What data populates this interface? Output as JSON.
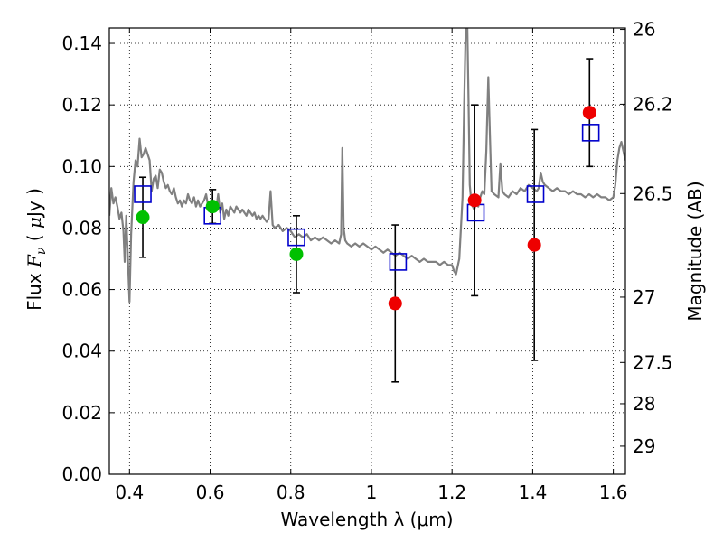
{
  "chart_data": {
    "type": "scatter",
    "xlabel": "Wavelength  λ (μm)",
    "ylabel": "Flux  F_ν  ( μJy )",
    "ylabel_parts": {
      "prefix": "Flux  ",
      "symbol": "F",
      "subscript": "ν",
      "suffix": "  ( ",
      "unit_mu": "μ",
      "unit": "Jy )"
    },
    "y2label": "Magnitude (AB)",
    "xlim": [
      0.35,
      1.63
    ],
    "ylim": [
      0.0,
      0.145
    ],
    "grid": true,
    "grid_style": "dotted",
    "x_ticks": [
      {
        "value": 0.4,
        "label": "0.4"
      },
      {
        "value": 0.6,
        "label": "0.6"
      },
      {
        "value": 0.8,
        "label": "0.8"
      },
      {
        "value": 1.0,
        "label": "1"
      },
      {
        "value": 1.2,
        "label": "1.2"
      },
      {
        "value": 1.4,
        "label": "1.4"
      },
      {
        "value": 1.6,
        "label": "1.6"
      }
    ],
    "y_ticks": [
      {
        "value": 0.0,
        "label": "0.00"
      },
      {
        "value": 0.02,
        "label": "0.02"
      },
      {
        "value": 0.04,
        "label": "0.04"
      },
      {
        "value": 0.06,
        "label": "0.06"
      },
      {
        "value": 0.08,
        "label": "0.08"
      },
      {
        "value": 0.1,
        "label": "0.10"
      },
      {
        "value": 0.12,
        "label": "0.12"
      },
      {
        "value": 0.14,
        "label": "0.14"
      }
    ],
    "y2_ticks": [
      {
        "mag": 26.0,
        "label": "26"
      },
      {
        "mag": 26.2,
        "label": "26.2"
      },
      {
        "mag": 26.5,
        "label": "26.5"
      },
      {
        "mag": 27.0,
        "label": "27"
      },
      {
        "mag": 27.5,
        "label": "27.5"
      },
      {
        "mag": 28.0,
        "label": "28"
      },
      {
        "mag": 29.0,
        "label": "29"
      }
    ],
    "colors": {
      "template": "#808080",
      "model_box": "#0000cc",
      "observed_optical": "#00c000",
      "observed_nir": "#ee0000",
      "errorbar": "#000000"
    },
    "series": [
      {
        "kind": "template-spectrum",
        "points": [
          [
            0.35,
            0.084
          ],
          [
            0.355,
            0.093
          ],
          [
            0.36,
            0.088
          ],
          [
            0.365,
            0.09
          ],
          [
            0.37,
            0.087
          ],
          [
            0.375,
            0.083
          ],
          [
            0.38,
            0.085
          ],
          [
            0.385,
            0.079
          ],
          [
            0.388,
            0.069
          ],
          [
            0.392,
            0.084
          ],
          [
            0.396,
            0.07
          ],
          [
            0.4,
            0.056
          ],
          [
            0.404,
            0.078
          ],
          [
            0.41,
            0.095
          ],
          [
            0.415,
            0.102
          ],
          [
            0.42,
            0.1
          ],
          [
            0.425,
            0.109
          ],
          [
            0.43,
            0.103
          ],
          [
            0.435,
            0.104
          ],
          [
            0.44,
            0.106
          ],
          [
            0.445,
            0.104
          ],
          [
            0.45,
            0.102
          ],
          [
            0.455,
            0.092
          ],
          [
            0.46,
            0.096
          ],
          [
            0.465,
            0.097
          ],
          [
            0.47,
            0.093
          ],
          [
            0.475,
            0.099
          ],
          [
            0.48,
            0.098
          ],
          [
            0.485,
            0.095
          ],
          [
            0.49,
            0.093
          ],
          [
            0.495,
            0.094
          ],
          [
            0.5,
            0.092
          ],
          [
            0.505,
            0.091
          ],
          [
            0.51,
            0.093
          ],
          [
            0.515,
            0.09
          ],
          [
            0.52,
            0.088
          ],
          [
            0.525,
            0.089
          ],
          [
            0.53,
            0.087
          ],
          [
            0.535,
            0.089
          ],
          [
            0.54,
            0.088
          ],
          [
            0.545,
            0.091
          ],
          [
            0.55,
            0.089
          ],
          [
            0.555,
            0.088
          ],
          [
            0.56,
            0.09
          ],
          [
            0.565,
            0.087
          ],
          [
            0.57,
            0.089
          ],
          [
            0.575,
            0.087
          ],
          [
            0.58,
            0.088
          ],
          [
            0.585,
            0.089
          ],
          [
            0.59,
            0.091
          ],
          [
            0.595,
            0.087
          ],
          [
            0.6,
            0.088
          ],
          [
            0.605,
            0.089
          ],
          [
            0.61,
            0.088
          ],
          [
            0.615,
            0.086
          ],
          [
            0.62,
            0.091
          ],
          [
            0.625,
            0.085
          ],
          [
            0.63,
            0.088
          ],
          [
            0.635,
            0.083
          ],
          [
            0.64,
            0.086
          ],
          [
            0.645,
            0.084
          ],
          [
            0.65,
            0.087
          ],
          [
            0.655,
            0.086
          ],
          [
            0.66,
            0.085
          ],
          [
            0.665,
            0.087
          ],
          [
            0.67,
            0.086
          ],
          [
            0.675,
            0.085
          ],
          [
            0.68,
            0.086
          ],
          [
            0.685,
            0.085
          ],
          [
            0.69,
            0.084
          ],
          [
            0.695,
            0.086
          ],
          [
            0.7,
            0.085
          ],
          [
            0.705,
            0.084
          ],
          [
            0.71,
            0.085
          ],
          [
            0.715,
            0.083
          ],
          [
            0.72,
            0.084
          ],
          [
            0.725,
            0.083
          ],
          [
            0.73,
            0.084
          ],
          [
            0.735,
            0.083
          ],
          [
            0.74,
            0.082
          ],
          [
            0.745,
            0.083
          ],
          [
            0.75,
            0.092
          ],
          [
            0.755,
            0.081
          ],
          [
            0.76,
            0.08
          ],
          [
            0.77,
            0.081
          ],
          [
            0.78,
            0.079
          ],
          [
            0.79,
            0.08
          ],
          [
            0.8,
            0.079
          ],
          [
            0.81,
            0.077
          ],
          [
            0.82,
            0.078
          ],
          [
            0.83,
            0.077
          ],
          [
            0.84,
            0.078
          ],
          [
            0.85,
            0.076
          ],
          [
            0.86,
            0.077
          ],
          [
            0.87,
            0.076
          ],
          [
            0.88,
            0.077
          ],
          [
            0.89,
            0.076
          ],
          [
            0.9,
            0.075
          ],
          [
            0.91,
            0.076
          ],
          [
            0.92,
            0.075
          ],
          [
            0.925,
            0.078
          ],
          [
            0.928,
            0.106
          ],
          [
            0.931,
            0.08
          ],
          [
            0.935,
            0.076
          ],
          [
            0.94,
            0.075
          ],
          [
            0.95,
            0.074
          ],
          [
            0.96,
            0.075
          ],
          [
            0.97,
            0.074
          ],
          [
            0.98,
            0.075
          ],
          [
            0.99,
            0.074
          ],
          [
            1.0,
            0.073
          ],
          [
            1.01,
            0.074
          ],
          [
            1.02,
            0.073
          ],
          [
            1.03,
            0.072
          ],
          [
            1.04,
            0.073
          ],
          [
            1.05,
            0.072
          ],
          [
            1.06,
            0.071
          ],
          [
            1.07,
            0.072
          ],
          [
            1.08,
            0.071
          ],
          [
            1.09,
            0.07
          ],
          [
            1.1,
            0.071
          ],
          [
            1.11,
            0.07
          ],
          [
            1.12,
            0.069
          ],
          [
            1.13,
            0.07
          ],
          [
            1.14,
            0.069
          ],
          [
            1.15,
            0.069
          ],
          [
            1.16,
            0.069
          ],
          [
            1.17,
            0.068
          ],
          [
            1.18,
            0.069
          ],
          [
            1.19,
            0.068
          ],
          [
            1.2,
            0.068
          ],
          [
            1.205,
            0.066
          ],
          [
            1.21,
            0.065
          ],
          [
            1.218,
            0.07
          ],
          [
            1.222,
            0.08
          ],
          [
            1.226,
            0.09
          ],
          [
            1.23,
            0.12
          ],
          [
            1.234,
            0.145
          ],
          [
            1.238,
            0.145
          ],
          [
            1.241,
            0.12
          ],
          [
            1.244,
            0.094
          ],
          [
            1.248,
            0.088
          ],
          [
            1.255,
            0.086
          ],
          [
            1.26,
            0.088
          ],
          [
            1.265,
            0.087
          ],
          [
            1.27,
            0.09
          ],
          [
            1.275,
            0.092
          ],
          [
            1.28,
            0.091
          ],
          [
            1.285,
            0.105
          ],
          [
            1.29,
            0.129
          ],
          [
            1.294,
            0.11
          ],
          [
            1.298,
            0.092
          ],
          [
            1.305,
            0.091
          ],
          [
            1.315,
            0.09
          ],
          [
            1.32,
            0.101
          ],
          [
            1.325,
            0.092
          ],
          [
            1.33,
            0.091
          ],
          [
            1.34,
            0.09
          ],
          [
            1.35,
            0.092
          ],
          [
            1.36,
            0.091
          ],
          [
            1.37,
            0.093
          ],
          [
            1.38,
            0.092
          ],
          [
            1.39,
            0.094
          ],
          [
            1.4,
            0.093
          ],
          [
            1.41,
            0.092
          ],
          [
            1.415,
            0.093
          ],
          [
            1.42,
            0.098
          ],
          [
            1.425,
            0.095
          ],
          [
            1.43,
            0.094
          ],
          [
            1.44,
            0.093
          ],
          [
            1.45,
            0.092
          ],
          [
            1.46,
            0.093
          ],
          [
            1.47,
            0.092
          ],
          [
            1.48,
            0.092
          ],
          [
            1.49,
            0.091
          ],
          [
            1.5,
            0.092
          ],
          [
            1.51,
            0.091
          ],
          [
            1.52,
            0.091
          ],
          [
            1.53,
            0.09
          ],
          [
            1.54,
            0.091
          ],
          [
            1.55,
            0.09
          ],
          [
            1.56,
            0.091
          ],
          [
            1.57,
            0.09
          ],
          [
            1.58,
            0.09
          ],
          [
            1.59,
            0.089
          ],
          [
            1.6,
            0.09
          ],
          [
            1.605,
            0.094
          ],
          [
            1.61,
            0.102
          ],
          [
            1.615,
            0.106
          ],
          [
            1.62,
            0.108
          ],
          [
            1.625,
            0.105
          ],
          [
            1.63,
            0.102
          ]
        ]
      },
      {
        "kind": "model-photometry",
        "marker": "open-square",
        "points": [
          {
            "x": 0.433,
            "y": 0.091
          },
          {
            "x": 0.606,
            "y": 0.084
          },
          {
            "x": 0.814,
            "y": 0.077
          },
          {
            "x": 1.066,
            "y": 0.069
          },
          {
            "x": 1.259,
            "y": 0.085
          },
          {
            "x": 1.407,
            "y": 0.091
          },
          {
            "x": 1.544,
            "y": 0.111
          }
        ]
      },
      {
        "kind": "observed-photometry",
        "marker": "filled-circle",
        "points": [
          {
            "x": 0.433,
            "y": 0.0835,
            "err": 0.013,
            "color": "observed_optical"
          },
          {
            "x": 0.606,
            "y": 0.087,
            "err": 0.0055,
            "color": "observed_optical"
          },
          {
            "x": 0.814,
            "y": 0.0715,
            "err": 0.0125,
            "color": "observed_optical"
          },
          {
            "x": 1.059,
            "y": 0.0555,
            "err": 0.0255,
            "color": "observed_nir"
          },
          {
            "x": 1.256,
            "y": 0.089,
            "err": 0.031,
            "color": "observed_nir"
          },
          {
            "x": 1.404,
            "y": 0.0745,
            "err": 0.0375,
            "color": "observed_nir"
          },
          {
            "x": 1.541,
            "y": 0.1175,
            "err": 0.0175,
            "color": "observed_nir"
          }
        ]
      }
    ]
  }
}
